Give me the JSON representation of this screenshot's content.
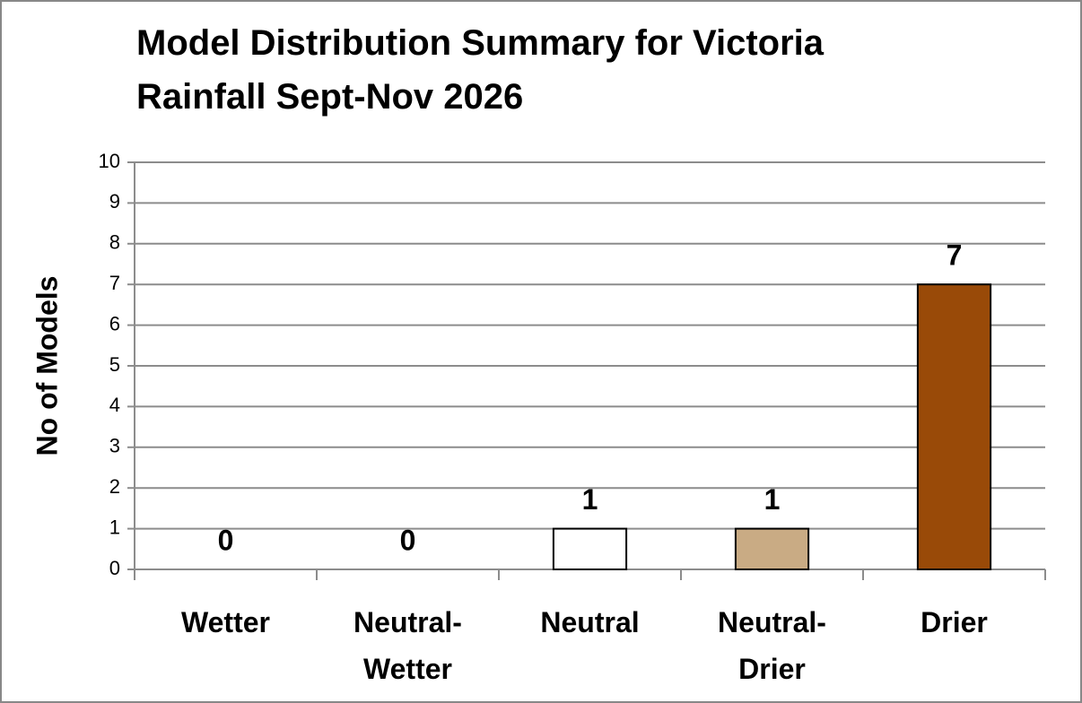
{
  "chart_data": {
    "type": "bar",
    "title": "Model Distribution Summary for Victoria Rainfall Sept-Nov 2026",
    "y_label": "No of Models",
    "categories": [
      "Wetter",
      "Neutral-Wetter",
      "Neutral",
      "Neutral-Drier",
      "Drier"
    ],
    "values": [
      0,
      0,
      1,
      1,
      7
    ],
    "colors": [
      "#ffffff",
      "#ffffff",
      "#ffffff",
      "#c9ab84",
      "#994a08"
    ],
    "ylim": [
      0,
      10
    ],
    "yticks": [
      0,
      1,
      2,
      3,
      4,
      5,
      6,
      7,
      8,
      9,
      10
    ],
    "grid": true
  }
}
